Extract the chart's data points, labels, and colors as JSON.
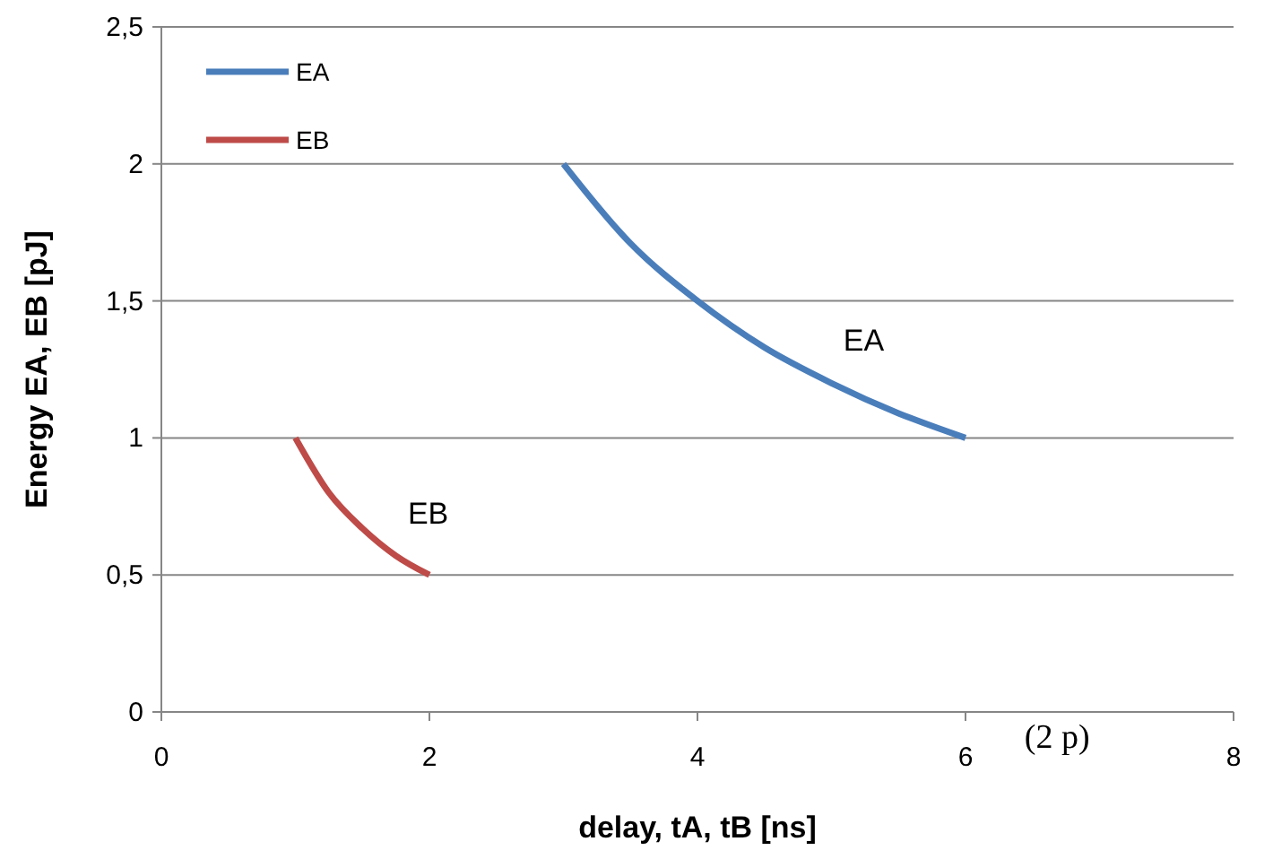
{
  "chart_data": {
    "type": "line",
    "xlabel": "delay, tA, tB [ns]",
    "ylabel": "Energy EA, EB [pJ]",
    "xlim": [
      0,
      8
    ],
    "xticks": [
      0,
      2,
      4,
      6,
      8
    ],
    "ylim": [
      0,
      2.5
    ],
    "yticks": [
      0,
      {
        "value": 0.5,
        "label": "0,5"
      },
      1,
      {
        "value": 1.5,
        "label": "1,5"
      },
      2,
      {
        "value": 2.5,
        "label": "2,5"
      }
    ],
    "grid": "y",
    "legend": "top left",
    "marker": "none",
    "line_style": "solid",
    "series": [
      {
        "name": "EA",
        "color": "#4a7ebb",
        "x": [
          3,
          3.5,
          4,
          4.5,
          5,
          5.5,
          6
        ],
        "values": [
          2,
          1.71,
          1.5,
          1.33,
          1.2,
          1.09,
          1
        ]
      },
      {
        "name": "EB",
        "color": "#be4b48",
        "x": [
          1,
          1.25,
          1.5,
          1.75,
          2
        ],
        "values": [
          1,
          0.8,
          0.67,
          0.57,
          0.5
        ]
      }
    ],
    "annotations": [
      "(2 p)"
    ]
  }
}
